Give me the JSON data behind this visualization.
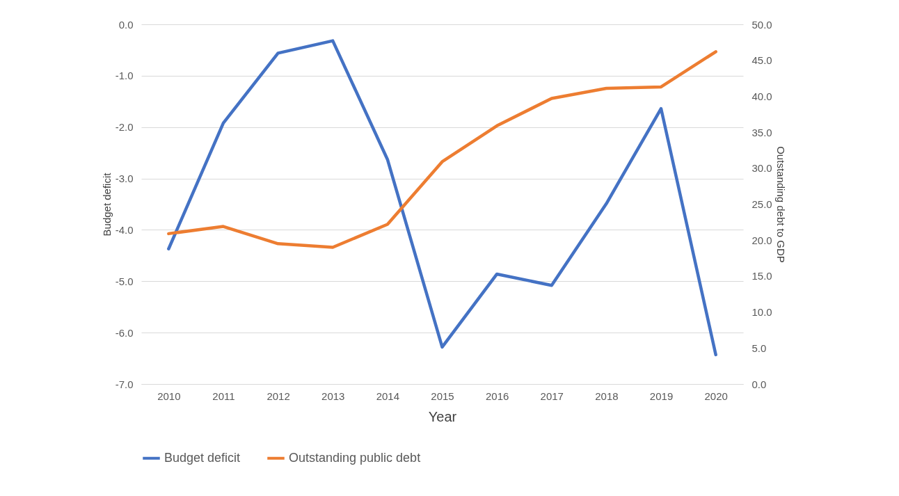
{
  "chart_data": {
    "type": "line",
    "xlabel": "Year",
    "ylabel": "Budget deficit",
    "y2label": "Outstanding debt to GDP",
    "categories": [
      "2010",
      "2011",
      "2012",
      "2013",
      "2014",
      "2015",
      "2016",
      "2017",
      "2018",
      "2019",
      "2020"
    ],
    "series": [
      {
        "name": "Budget deficit",
        "color": "#4472c4",
        "values": [
          -4.37,
          -1.92,
          -0.56,
          -0.32,
          -2.63,
          -6.28,
          -4.86,
          -5.08,
          -3.49,
          -1.64,
          -6.43
        ]
      },
      {
        "name": "Outstanding public debt",
        "color": "#ed7d31",
        "axis": "y2",
        "values": [
          20.9,
          21.9,
          19.5,
          19.0,
          22.2,
          30.9,
          35.9,
          39.7,
          41.1,
          41.3,
          46.2
        ]
      }
    ],
    "ylim": [
      -7,
      0
    ],
    "yticks": [
      {
        "value": -7,
        "label": "-7.0"
      },
      {
        "value": -6,
        "label": "-6.0"
      },
      {
        "value": -5,
        "label": "-5.0"
      },
      {
        "value": -4,
        "label": "-4.0"
      },
      {
        "value": -3,
        "label": "-3.0"
      },
      {
        "value": -2,
        "label": "-2.0"
      },
      {
        "value": -1,
        "label": "-1.0"
      },
      {
        "value": 0,
        "label": "0.0"
      }
    ],
    "y2lim": [
      0,
      50
    ],
    "y2ticks": [
      {
        "value": 0,
        "label": "0.0"
      },
      {
        "value": 5,
        "label": "5.0"
      },
      {
        "value": 10,
        "label": "10.0"
      },
      {
        "value": 15,
        "label": "15.0"
      },
      {
        "value": 20,
        "label": "20.0"
      },
      {
        "value": 25,
        "label": "25.0"
      },
      {
        "value": 30,
        "label": "30.0"
      },
      {
        "value": 35,
        "label": "35.0"
      },
      {
        "value": 40,
        "label": "40.0"
      },
      {
        "value": 45,
        "label": "45.0"
      },
      {
        "value": 50,
        "label": "50.0"
      }
    ],
    "grid": "y",
    "legend": "bottom"
  }
}
